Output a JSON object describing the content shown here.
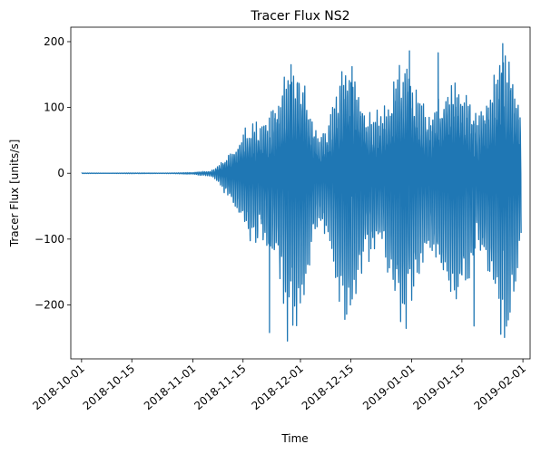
{
  "chart_data": {
    "type": "line",
    "title": "Tracer Flux NS2",
    "xlabel": "Time",
    "ylabel": "Tracer Flux [units/s]",
    "series_color": "#1f77b4",
    "xlim": [
      "2018-09-28",
      "2019-02-03"
    ],
    "ylim": [
      -282,
      222
    ],
    "x_ticks": [
      "2018-10-01",
      "2018-10-15",
      "2018-11-01",
      "2018-11-15",
      "2018-12-01",
      "2018-12-15",
      "2019-01-01",
      "2019-01-15",
      "2019-02-01"
    ],
    "y_ticks": [
      {
        "value": 200,
        "label": "200"
      },
      {
        "value": 100,
        "label": "100"
      },
      {
        "value": 0,
        "label": "0"
      },
      {
        "value": -100,
        "label": "−100"
      },
      {
        "value": -200,
        "label": "−200"
      }
    ],
    "grid": false,
    "legend": "none",
    "series": [
      {
        "x_start": "2018-10-01",
        "x_end": "2019-01-31",
        "step_hours": 1,
        "amplitude_envelope": [
          {
            "date": "2018-10-01",
            "amp": 0.3
          },
          {
            "date": "2018-10-25",
            "amp": 0.5
          },
          {
            "date": "2018-11-01",
            "amp": 1
          },
          {
            "date": "2018-11-06",
            "amp": 5
          },
          {
            "date": "2018-11-10",
            "amp": 28
          },
          {
            "date": "2018-11-14",
            "amp": 45
          },
          {
            "date": "2018-11-18",
            "amp": 85
          },
          {
            "date": "2018-11-22",
            "amp": 130
          },
          {
            "date": "2018-11-26",
            "amp": 140
          },
          {
            "date": "2018-12-02",
            "amp": 155
          },
          {
            "date": "2018-12-06",
            "amp": 95
          },
          {
            "date": "2018-12-10",
            "amp": 110
          },
          {
            "date": "2018-12-14",
            "amp": 155
          },
          {
            "date": "2018-12-20",
            "amp": 145
          },
          {
            "date": "2018-12-26",
            "amp": 120
          },
          {
            "date": "2018-12-31",
            "amp": 175
          },
          {
            "date": "2019-01-05",
            "amp": 150
          },
          {
            "date": "2019-01-10",
            "amp": 120
          },
          {
            "date": "2019-01-15",
            "amp": 140
          },
          {
            "date": "2019-01-21",
            "amp": 150
          },
          {
            "date": "2019-01-26",
            "amp": 175
          },
          {
            "date": "2019-01-31",
            "amp": 120
          }
        ],
        "extremes": [
          {
            "date": "2018-11-22",
            "value": -242
          },
          {
            "date": "2018-11-27",
            "value": -255
          },
          {
            "date": "2018-11-28",
            "value": 165
          },
          {
            "date": "2018-12-13",
            "value": -222
          },
          {
            "date": "2018-12-15",
            "value": 162
          },
          {
            "date": "2018-12-31",
            "value": 186
          },
          {
            "date": "2019-01-08",
            "value": 183
          },
          {
            "date": "2019-01-18",
            "value": -232
          },
          {
            "date": "2019-01-26",
            "value": 197
          },
          {
            "date": "2019-01-27",
            "value": -218
          }
        ]
      }
    ]
  }
}
